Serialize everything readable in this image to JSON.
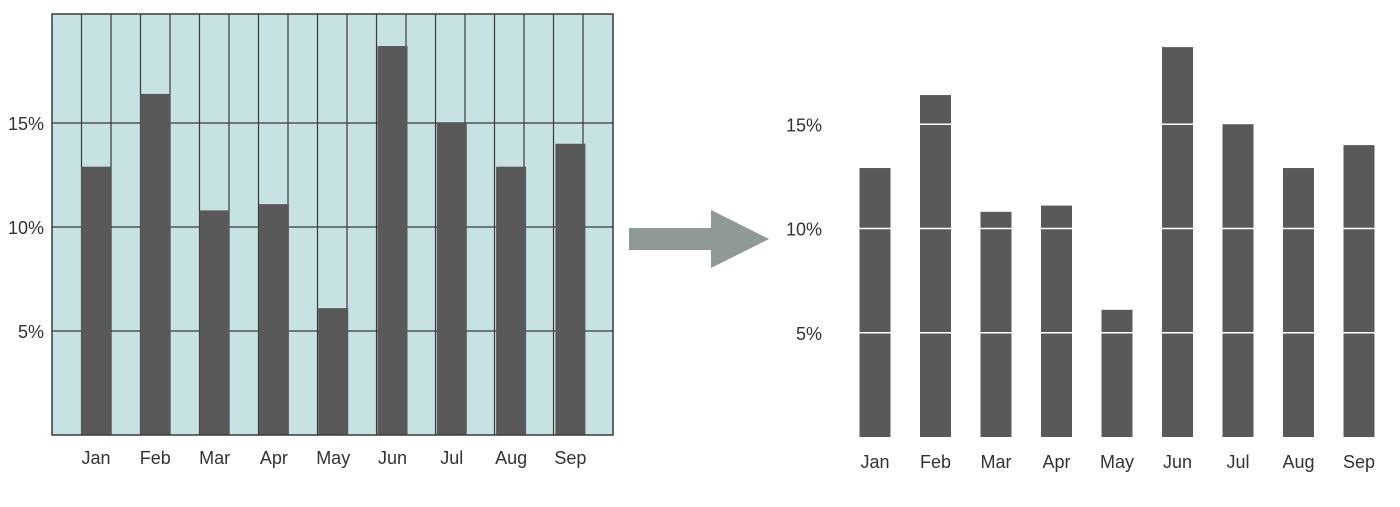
{
  "chart_data": [
    {
      "type": "bar",
      "style": "cluttered gridded chart",
      "categories": [
        "Jan",
        "Feb",
        "Mar",
        "Apr",
        "May",
        "Jun",
        "Jul",
        "Aug",
        "Sep"
      ],
      "values": [
        12.9,
        16.4,
        10.8,
        11.1,
        6.1,
        18.7,
        15.0,
        12.9,
        14.0
      ],
      "y_ticks": [
        "5%",
        "10%",
        "15%"
      ],
      "ylim": [
        0,
        20
      ],
      "grid": true,
      "gridlines": "horizontal and vertical",
      "background_color": "#c6e2e2",
      "bar_color": "#595959",
      "grid_color": "#3a3a3a"
    },
    {
      "type": "bar",
      "style": "decluttered chart",
      "categories": [
        "Jan",
        "Feb",
        "Mar",
        "Apr",
        "May",
        "Jun",
        "Jul",
        "Aug",
        "Sep"
      ],
      "values": [
        12.9,
        16.4,
        10.8,
        11.1,
        6.1,
        18.7,
        15.0,
        12.9,
        14.0
      ],
      "y_ticks": [
        "5%",
        "10%",
        "15%"
      ],
      "ylim": [
        0,
        20
      ],
      "grid": false,
      "reference_lines": "white lines across the bars at each tick",
      "background_color": "#ffffff",
      "bar_color": "#595959",
      "reference_line_color": "#ffffff"
    }
  ],
  "transition": {
    "icon": "arrow-right-icon",
    "color": "#8f9a98"
  }
}
